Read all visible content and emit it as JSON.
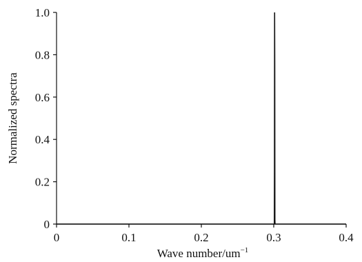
{
  "chart_data": {
    "type": "line",
    "title": "",
    "xlabel": "Wave number/um",
    "xlabel_superscript": "−1",
    "ylabel": "Normalized spectra",
    "xlim": [
      0,
      0.4
    ],
    "ylim": [
      0,
      1.0
    ],
    "x_ticks": [
      0,
      0.1,
      0.2,
      0.3,
      0.4
    ],
    "x_tick_labels": [
      "0",
      "0.1",
      "0.2",
      "0.3",
      "0.4"
    ],
    "y_ticks": [
      0,
      0.2,
      0.4,
      0.6,
      0.8,
      1.0
    ],
    "y_tick_labels": [
      "0",
      "0.2",
      "0.4",
      "0.6",
      "0.8",
      "1.0"
    ],
    "grid": false,
    "legend": "none",
    "series": [
      {
        "color": "#111111",
        "x": [
          0,
          0.3008,
          0.301,
          0.3012,
          0.3014,
          0.3016,
          0.3018,
          0.4
        ],
        "y": [
          0,
          0,
          0.25,
          1.0,
          0.75,
          0.02,
          0,
          0
        ]
      }
    ]
  }
}
